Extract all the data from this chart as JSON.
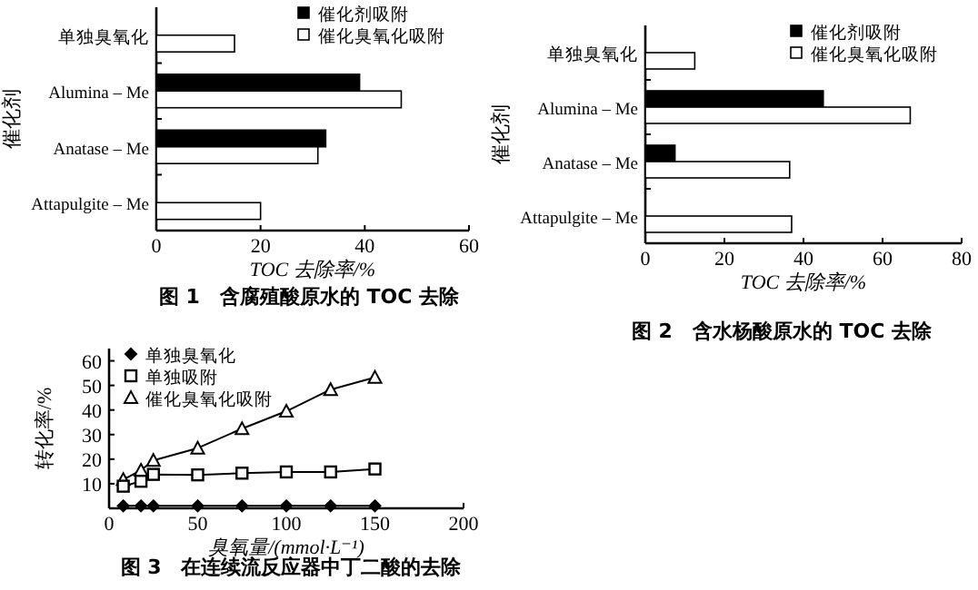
{
  "chart_data": [
    {
      "type": "bar",
      "orientation": "horizontal",
      "title": "图 1　含腐殖酸原水的 TOC 去除",
      "xlabel": "TOC 去除率/%",
      "ylabel": "催化剂",
      "categories": [
        "单独臭氧化",
        "Alumina – Me",
        "Anatase – Me",
        "Attapulgite – Me"
      ],
      "series": [
        {
          "name": "催化剂吸附",
          "color": "#000000",
          "values": [
            null,
            39,
            32.5,
            null
          ]
        },
        {
          "name": "催化臭氧化吸附",
          "color": "#ffffff",
          "values": [
            15,
            47,
            31,
            20
          ]
        }
      ],
      "xlim": [
        0,
        60
      ],
      "xticks": [
        0,
        20,
        40,
        60
      ],
      "legend": "top right"
    },
    {
      "type": "bar",
      "orientation": "horizontal",
      "title": "图 2　含水杨酸原水的 TOC 去除",
      "xlabel": "TOC 去除率/%",
      "ylabel": "催化剂",
      "categories": [
        "单独臭氧化",
        "Alumina – Me",
        "Anatase – Me",
        "Attapulgite – Me"
      ],
      "series": [
        {
          "name": "催化剂吸附",
          "color": "#000000",
          "values": [
            null,
            45,
            7.5,
            null
          ]
        },
        {
          "name": "催化臭氧化吸附",
          "color": "#ffffff",
          "values": [
            12.5,
            67,
            36.5,
            37
          ]
        }
      ],
      "xlim": [
        0,
        80
      ],
      "xticks": [
        0,
        20,
        40,
        60,
        80
      ],
      "legend": "top right"
    },
    {
      "type": "line",
      "title": "图 3　在连续流反应器中丁二酸的去除",
      "xlabel": "臭氧量/(mmol·L⁻¹)",
      "ylabel": "转化率/%",
      "x": [
        8,
        18,
        25,
        50,
        75,
        100,
        125,
        150
      ],
      "series": [
        {
          "name": "单独臭氧化",
          "color": "#000000",
          "marker": "diamond",
          "values": [
            1,
            1,
            1,
            1,
            1,
            1,
            1,
            1
          ]
        },
        {
          "name": "单独吸附",
          "color": "#000000",
          "marker": "square",
          "values": [
            9,
            11,
            13.8,
            13.6,
            14.3,
            14.8,
            14.8,
            16
          ]
        },
        {
          "name": "催化臭氧化吸附",
          "color": "#000000",
          "marker": "triangle",
          "values": [
            11.7,
            15.5,
            19.5,
            24.5,
            32.4,
            39.5,
            48.3,
            53.3
          ]
        }
      ],
      "xlim": [
        0,
        200
      ],
      "xticks": [
        0,
        50,
        100,
        150,
        200
      ],
      "ylim": [
        0,
        65
      ],
      "yticks": [
        10,
        20,
        30,
        40,
        50,
        60
      ],
      "legend": "top left"
    }
  ]
}
